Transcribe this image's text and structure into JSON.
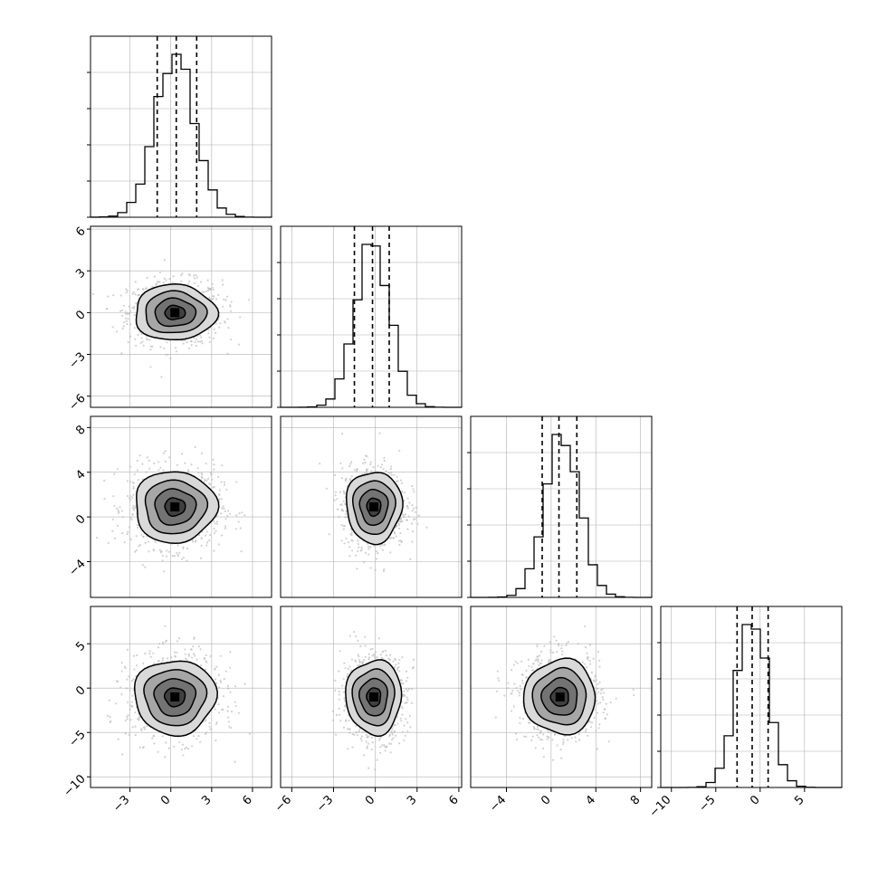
{
  "chart_data": {
    "type": "corner",
    "description_title": "",
    "n_params": 4,
    "grid": true,
    "histogram_bins_per_param": 20,
    "params": [
      {
        "index": 0,
        "range": [
          -5.9,
          7.4
        ],
        "ticks": [
          -3,
          0,
          3,
          6
        ],
        "tick_labels": [
          "−3",
          "0",
          "3",
          "6"
        ],
        "quantiles": [
          -1.0,
          0.4,
          1.9
        ],
        "hist_mode": 0.3
      },
      {
        "index": 1,
        "range": [
          -6.8,
          6.2
        ],
        "ticks": [
          -6,
          -3,
          0,
          3,
          6
        ],
        "tick_labels": [
          "−6",
          "−3",
          "0",
          "3",
          "6"
        ],
        "quantiles": [
          -1.5,
          -0.2,
          1.0
        ],
        "hist_mode": -0.2
      },
      {
        "index": 2,
        "range": [
          -7.2,
          9.0
        ],
        "ticks": [
          -4,
          0,
          4,
          8
        ],
        "tick_labels": [
          "−4",
          "0",
          "4",
          "8"
        ],
        "quantiles": [
          -0.8,
          0.7,
          2.3
        ],
        "hist_mode": 1.0
      },
      {
        "index": 3,
        "range": [
          -11.2,
          9.2
        ],
        "ticks": [
          -10,
          -5,
          0,
          5
        ],
        "tick_labels": [
          "−10",
          "−5",
          "0",
          "5"
        ],
        "quantiles": [
          -2.6,
          -0.9,
          0.9
        ],
        "hist_mode": -0.9
      }
    ],
    "pairs": [
      {
        "x": 0,
        "y": 1,
        "center": [
          0.3,
          0.0
        ],
        "sigma": [
          1.5,
          1.0
        ]
      },
      {
        "x": 0,
        "y": 2,
        "center": [
          0.3,
          0.9
        ],
        "sigma": [
          1.5,
          1.6
        ]
      },
      {
        "x": 1,
        "y": 2,
        "center": [
          -0.1,
          0.9
        ],
        "sigma": [
          1.0,
          1.6
        ]
      },
      {
        "x": 0,
        "y": 3,
        "center": [
          0.3,
          -1.0
        ],
        "sigma": [
          1.5,
          2.1
        ]
      },
      {
        "x": 1,
        "y": 3,
        "center": [
          -0.1,
          -1.0
        ],
        "sigma": [
          1.0,
          2.1
        ]
      },
      {
        "x": 2,
        "y": 3,
        "center": [
          0.8,
          -1.0
        ],
        "sigma": [
          1.6,
          2.1
        ]
      }
    ],
    "contour_levels_sigma": [
      0.5,
      1.0,
      1.5,
      2.0
    ],
    "colors": {
      "line": "#000000",
      "grid": "#b0b0b0",
      "scatter": "#bdbdbd",
      "density": [
        "#d9d9d9",
        "#a6a6a6",
        "#737373",
        "#404040",
        "#000000"
      ]
    }
  }
}
